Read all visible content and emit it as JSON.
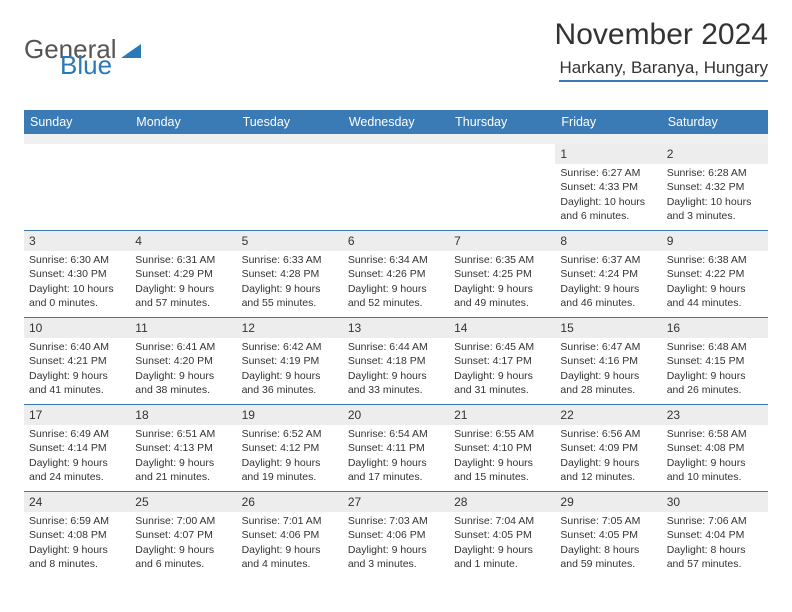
{
  "logo": {
    "text1": "General",
    "text2": "Blue"
  },
  "title": "November 2024",
  "location": "Harkany, Baranya, Hungary",
  "weekdays": [
    "Sunday",
    "Monday",
    "Tuesday",
    "Wednesday",
    "Thursday",
    "Friday",
    "Saturday"
  ],
  "colors": {
    "header_bar": "#3a7ab5",
    "daynum_bg": "#ededed",
    "rule": "#3a7ab5"
  },
  "weeks": [
    [
      null,
      null,
      null,
      null,
      null,
      {
        "n": "1",
        "sr": "6:27 AM",
        "ss": "4:33 PM",
        "dl": "10 hours and 6 minutes."
      },
      {
        "n": "2",
        "sr": "6:28 AM",
        "ss": "4:32 PM",
        "dl": "10 hours and 3 minutes."
      }
    ],
    [
      {
        "n": "3",
        "sr": "6:30 AM",
        "ss": "4:30 PM",
        "dl": "10 hours and 0 minutes."
      },
      {
        "n": "4",
        "sr": "6:31 AM",
        "ss": "4:29 PM",
        "dl": "9 hours and 57 minutes."
      },
      {
        "n": "5",
        "sr": "6:33 AM",
        "ss": "4:28 PM",
        "dl": "9 hours and 55 minutes."
      },
      {
        "n": "6",
        "sr": "6:34 AM",
        "ss": "4:26 PM",
        "dl": "9 hours and 52 minutes."
      },
      {
        "n": "7",
        "sr": "6:35 AM",
        "ss": "4:25 PM",
        "dl": "9 hours and 49 minutes."
      },
      {
        "n": "8",
        "sr": "6:37 AM",
        "ss": "4:24 PM",
        "dl": "9 hours and 46 minutes."
      },
      {
        "n": "9",
        "sr": "6:38 AM",
        "ss": "4:22 PM",
        "dl": "9 hours and 44 minutes."
      }
    ],
    [
      {
        "n": "10",
        "sr": "6:40 AM",
        "ss": "4:21 PM",
        "dl": "9 hours and 41 minutes."
      },
      {
        "n": "11",
        "sr": "6:41 AM",
        "ss": "4:20 PM",
        "dl": "9 hours and 38 minutes."
      },
      {
        "n": "12",
        "sr": "6:42 AM",
        "ss": "4:19 PM",
        "dl": "9 hours and 36 minutes."
      },
      {
        "n": "13",
        "sr": "6:44 AM",
        "ss": "4:18 PM",
        "dl": "9 hours and 33 minutes."
      },
      {
        "n": "14",
        "sr": "6:45 AM",
        "ss": "4:17 PM",
        "dl": "9 hours and 31 minutes."
      },
      {
        "n": "15",
        "sr": "6:47 AM",
        "ss": "4:16 PM",
        "dl": "9 hours and 28 minutes."
      },
      {
        "n": "16",
        "sr": "6:48 AM",
        "ss": "4:15 PM",
        "dl": "9 hours and 26 minutes."
      }
    ],
    [
      {
        "n": "17",
        "sr": "6:49 AM",
        "ss": "4:14 PM",
        "dl": "9 hours and 24 minutes."
      },
      {
        "n": "18",
        "sr": "6:51 AM",
        "ss": "4:13 PM",
        "dl": "9 hours and 21 minutes."
      },
      {
        "n": "19",
        "sr": "6:52 AM",
        "ss": "4:12 PM",
        "dl": "9 hours and 19 minutes."
      },
      {
        "n": "20",
        "sr": "6:54 AM",
        "ss": "4:11 PM",
        "dl": "9 hours and 17 minutes."
      },
      {
        "n": "21",
        "sr": "6:55 AM",
        "ss": "4:10 PM",
        "dl": "9 hours and 15 minutes."
      },
      {
        "n": "22",
        "sr": "6:56 AM",
        "ss": "4:09 PM",
        "dl": "9 hours and 12 minutes."
      },
      {
        "n": "23",
        "sr": "6:58 AM",
        "ss": "4:08 PM",
        "dl": "9 hours and 10 minutes."
      }
    ],
    [
      {
        "n": "24",
        "sr": "6:59 AM",
        "ss": "4:08 PM",
        "dl": "9 hours and 8 minutes."
      },
      {
        "n": "25",
        "sr": "7:00 AM",
        "ss": "4:07 PM",
        "dl": "9 hours and 6 minutes."
      },
      {
        "n": "26",
        "sr": "7:01 AM",
        "ss": "4:06 PM",
        "dl": "9 hours and 4 minutes."
      },
      {
        "n": "27",
        "sr": "7:03 AM",
        "ss": "4:06 PM",
        "dl": "9 hours and 3 minutes."
      },
      {
        "n": "28",
        "sr": "7:04 AM",
        "ss": "4:05 PM",
        "dl": "9 hours and 1 minute."
      },
      {
        "n": "29",
        "sr": "7:05 AM",
        "ss": "4:05 PM",
        "dl": "8 hours and 59 minutes."
      },
      {
        "n": "30",
        "sr": "7:06 AM",
        "ss": "4:04 PM",
        "dl": "8 hours and 57 minutes."
      }
    ]
  ],
  "labels": {
    "sunrise": "Sunrise: ",
    "sunset": "Sunset: ",
    "daylight": "Daylight: "
  }
}
